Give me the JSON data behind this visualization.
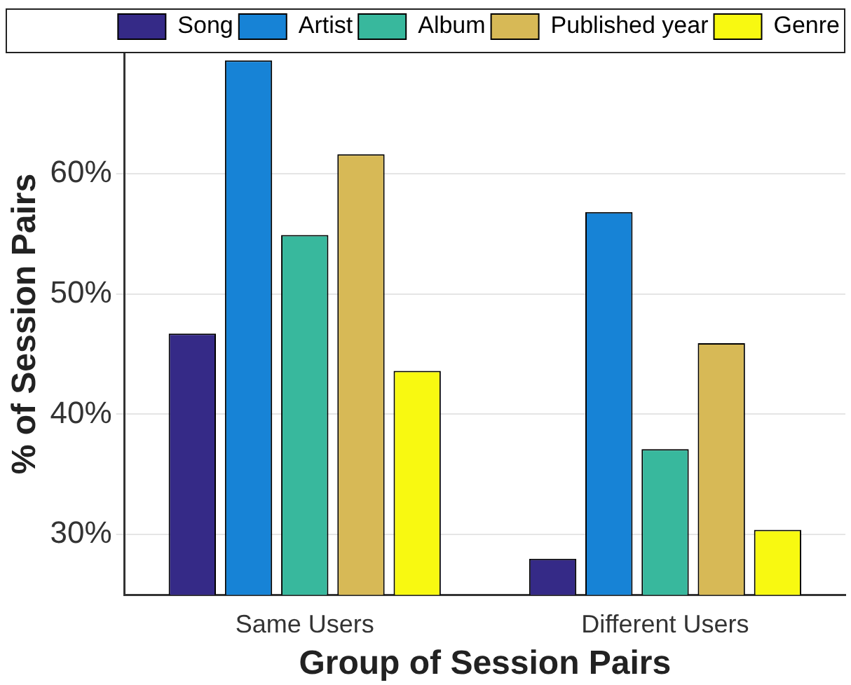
{
  "chart_data": {
    "type": "bar",
    "xlabel": "Group of Session Pairs",
    "ylabel": "% of Session Pairs",
    "categories": [
      "Same Users",
      "Different Users"
    ],
    "series": [
      {
        "name": "Song",
        "color": "#352a87",
        "values": [
          46.7,
          28.0
        ]
      },
      {
        "name": "Artist",
        "color": "#1783d6",
        "values": [
          69.4,
          56.8
        ]
      },
      {
        "name": "Album",
        "color": "#38b89d",
        "values": [
          54.9,
          37.1
        ]
      },
      {
        "name": "Published year",
        "color": "#d7b956",
        "values": [
          61.6,
          45.9
        ]
      },
      {
        "name": "Genre",
        "color": "#f8f911",
        "values": [
          43.6,
          30.4
        ]
      }
    ],
    "ylim": [
      25,
      70
    ],
    "yticks": [
      {
        "value": 30,
        "label": "30%"
      },
      {
        "value": 40,
        "label": "40%"
      },
      {
        "value": 50,
        "label": "50%"
      },
      {
        "value": 60,
        "label": "60%"
      }
    ],
    "grid": "y",
    "legend": "top"
  }
}
